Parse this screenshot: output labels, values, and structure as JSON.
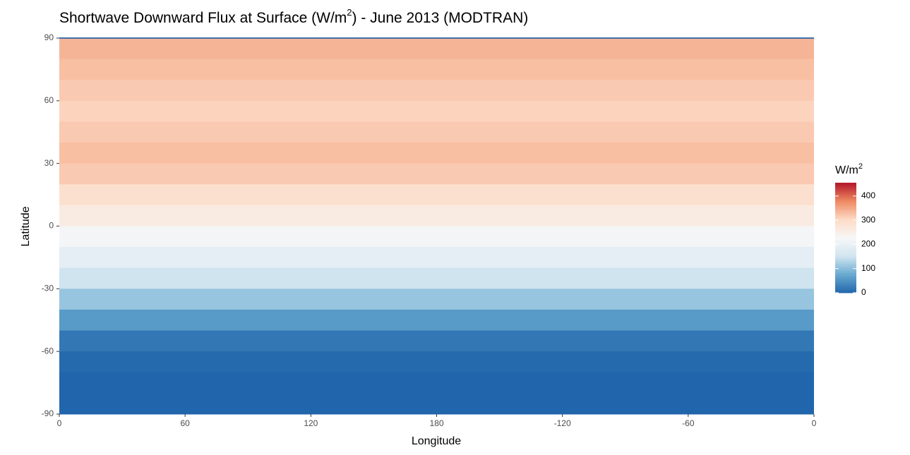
{
  "chart_data": {
    "type": "heatmap",
    "title": [
      "Shortwave Downward Flux at Surface (W/m",
      "2",
      ") - June 2013 (MODTRAN)"
    ],
    "xlabel": "Longitude",
    "ylabel": "Latitude",
    "xlim": [
      0,
      360
    ],
    "xticks": [
      0,
      60,
      120,
      180,
      {
        "value": 240,
        "label": "-120"
      },
      {
        "value": 300,
        "label": "-60"
      },
      {
        "value": 360,
        "label": "0"
      }
    ],
    "ylim": [
      -90,
      90
    ],
    "yticks": [
      -90,
      -60,
      -30,
      0,
      30,
      60,
      90
    ],
    "lat": [
      85,
      75,
      65,
      55,
      45,
      35,
      25,
      15,
      5,
      -5,
      -15,
      -25,
      -35,
      -45,
      -55,
      -65,
      -75,
      -85
    ],
    "values": [
      340,
      330,
      320,
      310,
      320,
      330,
      320,
      290,
      260,
      220,
      190,
      150,
      110,
      60,
      20,
      5,
      0,
      0
    ],
    "legend_title": [
      "W/m",
      "2"
    ],
    "color_scale": {
      "limits": [
        0,
        455
      ],
      "ticks": [
        0,
        100,
        200,
        300,
        400
      ],
      "colors": [
        "#2166ac",
        "#67a9cf",
        "#d1e5f0",
        "#f7f7f7",
        "#fddbc7",
        "#ef8a62",
        "#b2182b"
      ]
    }
  }
}
